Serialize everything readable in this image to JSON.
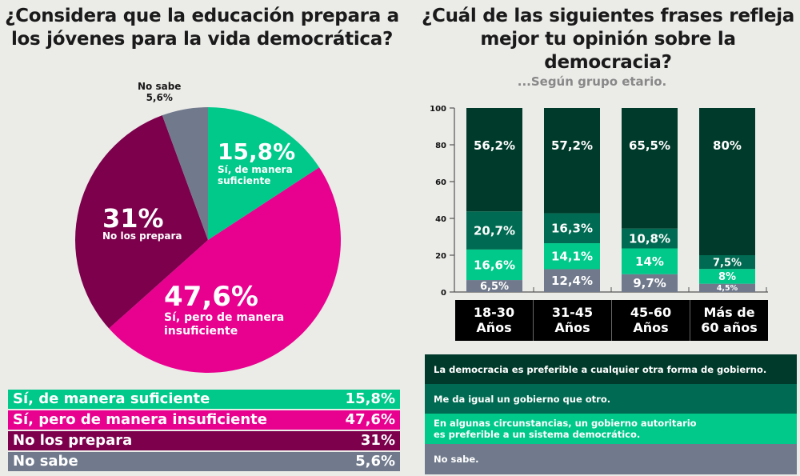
{
  "left_title": "¿Considera que la educación prepara a los jóvenes para la vida democrática?",
  "right_title": "¿Cuál de las siguientes frases refleja mejor tu opinión sobre la democracia?",
  "right_subtitle": "...Según grupo etario.",
  "pie_labels": {
    "suficiente_pct": "15,8%",
    "suficiente_text": "Sí, de manera suficiente",
    "insuficiente_pct": "47,6%",
    "insuficiente_text": "Sí, pero de manera insuficiente",
    "noprepara_pct": "31%",
    "noprepara_text": "No los prepara",
    "nosabe_text": "No sabe",
    "nosabe_pct": "5,6%"
  },
  "legend_left": [
    {
      "label": "Sí, de manera suficiente",
      "value": "15,8%",
      "color": "#00c98a"
    },
    {
      "label": "Sí, pero de manera insuficiente",
      "value": "47,6%",
      "color": "#e8008f"
    },
    {
      "label": "No los prepara",
      "value": "31%",
      "color": "#7c004c"
    },
    {
      "label": "No sabe",
      "value": "5,6%",
      "color": "#707a8c"
    }
  ],
  "legend_right": [
    {
      "label": "La democracia es preferible a  cualquier otra forma de gobierno.",
      "color": "#003a2a"
    },
    {
      "label": "Me da igual un gobierno que otro.",
      "color": "#006b52"
    },
    {
      "label": "En algunas circunstancias, un gobierno autoritario es preferible a un sistema democrático.",
      "color": "#00c98a"
    },
    {
      "label": "No sabe.",
      "color": "#707a8c"
    }
  ],
  "age_groups": [
    {
      "line1": "18-30",
      "line2": "Años"
    },
    {
      "line1": "31-45",
      "line2": "Años"
    },
    {
      "line1": "45-60",
      "line2": "Años"
    },
    {
      "line1": "Más de",
      "line2": "60 años"
    }
  ],
  "chart_data": [
    {
      "type": "pie",
      "title": "¿Considera que la educación prepara a los jóvenes para la vida democrática?",
      "categories": [
        "Sí, de manera suficiente",
        "Sí, pero de manera insuficiente",
        "No los prepara",
        "No sabe"
      ],
      "values": [
        15.8,
        47.6,
        31,
        5.6
      ],
      "colors": [
        "#00c98a",
        "#e8008f",
        "#7c004c",
        "#707a8c"
      ],
      "start": "top, clockwise"
    },
    {
      "type": "bar",
      "stacked": true,
      "title": "¿Cuál de las siguientes frases refleja mejor tu opinión sobre la democracia?",
      "subtitle": "...Según grupo etario.",
      "categories": [
        "18-30 Años",
        "31-45 Años",
        "45-60 Años",
        "Más de 60 años"
      ],
      "ylim": [
        0,
        100
      ],
      "yticks": [
        0,
        20,
        40,
        60,
        80,
        100
      ],
      "series": [
        {
          "name": "No sabe.",
          "color": "#707a8c",
          "values": [
            6.5,
            12.4,
            9.7,
            4.5
          ],
          "labels": [
            "6,5%",
            "12,4%",
            "9,7%",
            "4,5%"
          ]
        },
        {
          "name": "En algunas circunstancias, un gobierno autoritario es preferible a un sistema democrático.",
          "color": "#00c98a",
          "values": [
            16.6,
            14.1,
            14,
            8
          ],
          "labels": [
            "16,6%",
            "14,1%",
            "14%",
            "8%"
          ]
        },
        {
          "name": "Me da igual un gobierno que otro.",
          "color": "#006b52",
          "values": [
            20.7,
            16.3,
            10.8,
            7.5
          ],
          "labels": [
            "20,7%",
            "16,3%",
            "10,8%",
            "7,5%"
          ]
        },
        {
          "name": "La democracia es preferible a  cualquier otra forma de gobierno.",
          "color": "#003a2a",
          "values": [
            56.2,
            57.2,
            65.5,
            80
          ],
          "labels": [
            "56,2%",
            "57,2%",
            "65,5%",
            "80%"
          ]
        }
      ],
      "legend": "bottom"
    }
  ]
}
